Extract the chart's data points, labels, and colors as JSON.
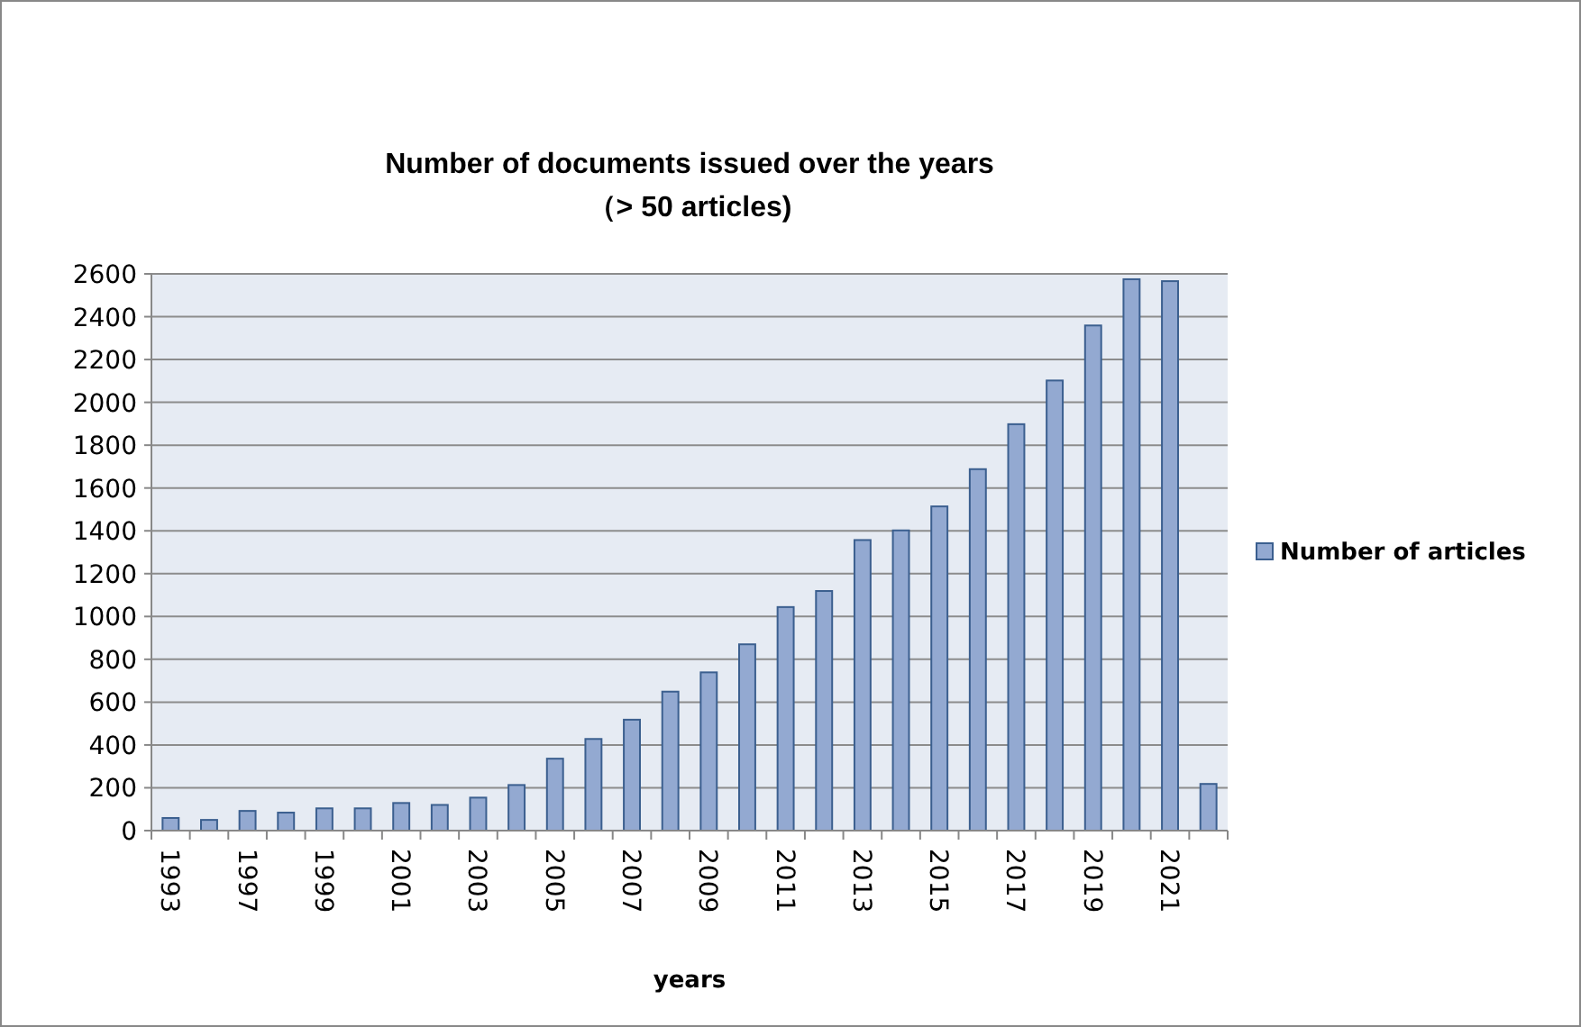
{
  "chart_data": {
    "type": "bar",
    "title": "Number of documents issued over the years\n（> 50 articles)",
    "xlabel": "years",
    "categories": [
      "1993",
      null,
      "1997",
      null,
      "1999",
      null,
      "2001",
      null,
      "2003",
      null,
      "2005",
      null,
      "2007",
      null,
      "2009",
      null,
      "2011",
      null,
      "2013",
      null,
      "2015",
      null,
      "2017",
      null,
      "2019",
      null,
      "2021",
      null
    ],
    "series": [
      {
        "name": "Number of articles",
        "color": "#93a9d1",
        "values": [
          59,
          50,
          92,
          84,
          104,
          104,
          129,
          120,
          154,
          213,
          336,
          428,
          518,
          649,
          739,
          870,
          1044,
          1119,
          1357,
          1402,
          1514,
          1688,
          1898,
          2102,
          2359,
          2575,
          2566,
          218
        ]
      }
    ],
    "ylim": [
      0,
      2600
    ],
    "yticks": [
      0,
      200,
      400,
      600,
      800,
      1000,
      1200,
      1400,
      1600,
      1800,
      2000,
      2200,
      2400,
      2600
    ],
    "grid": "y",
    "legend": "right"
  }
}
